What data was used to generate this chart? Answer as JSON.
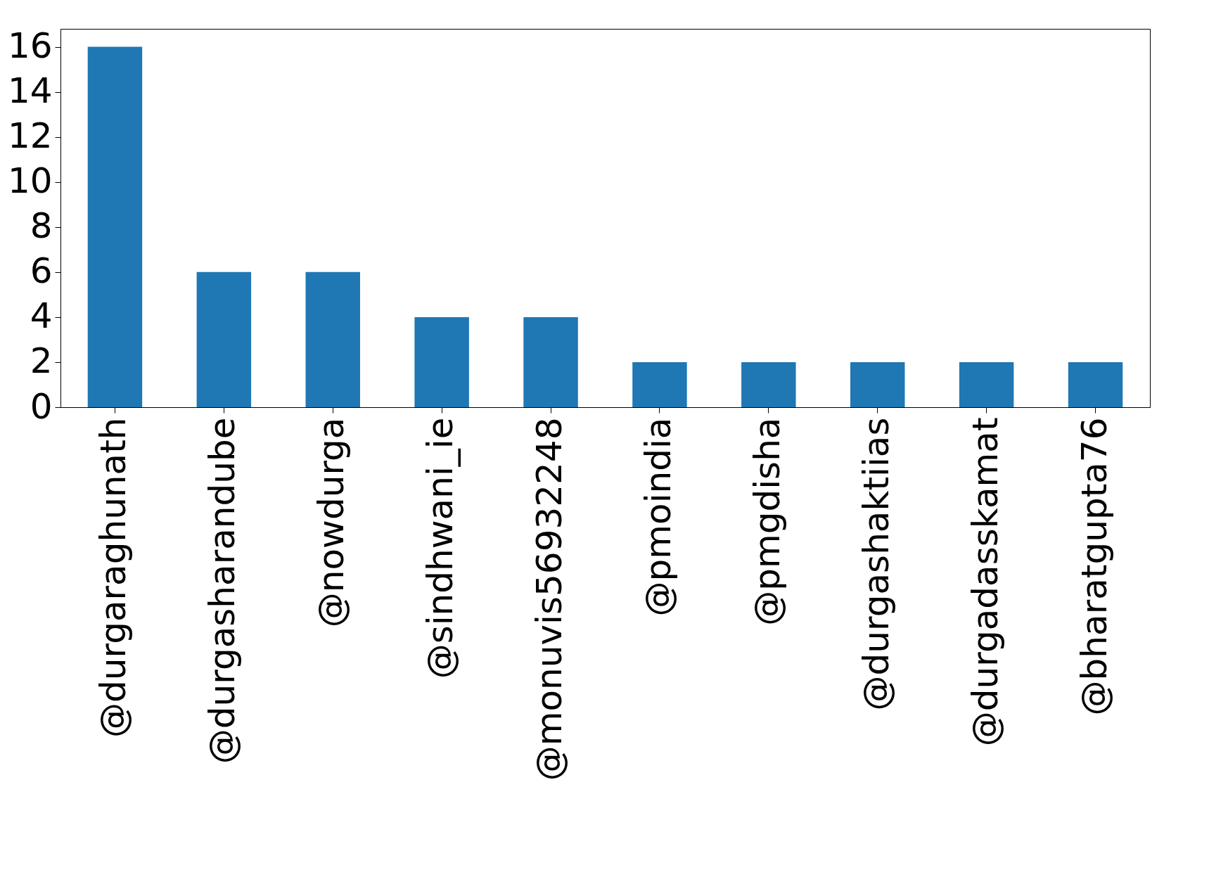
{
  "chart_data": {
    "type": "bar",
    "categories": [
      "@durgaraghunath",
      "@durgasharandube",
      "@nowdurga",
      "@sindhwani_ie",
      "@monuvis56932248",
      "@pmoindia",
      "@pmgdisha",
      "@durgashaktiias",
      "@durgadasskamat",
      "@bharatgupta76"
    ],
    "values": [
      16,
      6,
      6,
      4,
      4,
      2,
      2,
      2,
      2,
      2
    ],
    "color": "#1f77b4",
    "ylim": [
      0,
      16.8
    ],
    "yticks": [
      0,
      2,
      4,
      6,
      8,
      10,
      12,
      14,
      16
    ],
    "grid": false
  }
}
